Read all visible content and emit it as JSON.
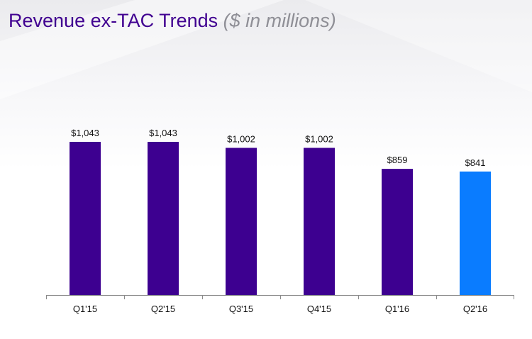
{
  "header": {
    "title": "Revenue ex-TAC Trends",
    "subtitle": "($ in millions)"
  },
  "colors": {
    "title": "#400090",
    "subtitle": "#8f8f96",
    "bar": "#3d0090",
    "highlight_bar": "#0a7cff",
    "axis": "#8a8a8a"
  },
  "chart_data": {
    "type": "bar",
    "title": "Revenue ex-TAC Trends",
    "subtitle": "($ in millions)",
    "categories": [
      "Q1'15",
      "Q2'15",
      "Q3'15",
      "Q4'15",
      "Q1'16",
      "Q2'16"
    ],
    "values": [
      1043,
      1043,
      1002,
      1002,
      859,
      841
    ],
    "value_labels": [
      "$1,043",
      "$1,043",
      "$1,002",
      "$1,002",
      "$859",
      "$841"
    ],
    "highlighted_category": "Q2'16",
    "xlabel": "",
    "ylabel": "",
    "ylim": [
      0,
      1100
    ],
    "grid": false,
    "legend": "none"
  }
}
